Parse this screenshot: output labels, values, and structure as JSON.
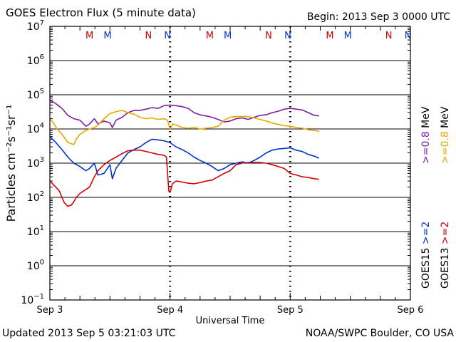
{
  "header": {
    "title": "GOES Electron Flux (5 minute data)",
    "begin": "Begin: 2013 Sep 3 0000 UTC"
  },
  "footer": {
    "updated": "Updated 2013 Sep  5 03:21:03 UTC",
    "credit": "NOAA/SWPC Boulder, CO USA"
  },
  "chart_data": {
    "type": "line",
    "title": "GOES Electron Flux (5 minute data)",
    "xlabel": "Universal Time",
    "ylabel": "Particles cm⁻²s⁻¹sr⁻¹",
    "yscale": "log",
    "ylim_exponents": [
      -1,
      7
    ],
    "xlim_days": [
      0,
      3
    ],
    "x_ticks": [
      {
        "day": 0,
        "label": "Sep 3"
      },
      {
        "day": 1,
        "label": "Sep 4"
      },
      {
        "day": 2,
        "label": "Sep 5"
      },
      {
        "day": 3,
        "label": "Sep 6"
      }
    ],
    "y_ticks": [
      {
        "exp": 7,
        "base": "10",
        "sup": "7"
      },
      {
        "exp": 6,
        "base": "10",
        "sup": "6"
      },
      {
        "exp": 5,
        "base": "10",
        "sup": "5"
      },
      {
        "exp": 4,
        "base": "10",
        "sup": "4"
      },
      {
        "exp": 3,
        "base": "10",
        "sup": "3"
      },
      {
        "exp": 2,
        "base": "10",
        "sup": "2"
      },
      {
        "exp": 1,
        "base": "10",
        "sup": "1"
      },
      {
        "exp": 0,
        "base": "10",
        "sup": "0"
      },
      {
        "exp": -1,
        "base": "10",
        "sup": "−1"
      }
    ],
    "threshold": {
      "value": 1000,
      "style": "dashed"
    },
    "midnight_marks_days": [
      1,
      2
    ],
    "midnight_markers": [
      {
        "day": 0.33,
        "text": "M",
        "color": "#cc0000"
      },
      {
        "day": 0.48,
        "text": "M",
        "color": "#0033cc"
      },
      {
        "day": 0.82,
        "text": "N",
        "color": "#cc0000"
      },
      {
        "day": 0.98,
        "text": "N",
        "color": "#0033cc"
      },
      {
        "day": 1.33,
        "text": "M",
        "color": "#cc0000"
      },
      {
        "day": 1.48,
        "text": "M",
        "color": "#0033cc"
      },
      {
        "day": 1.82,
        "text": "N",
        "color": "#cc0000"
      },
      {
        "day": 1.98,
        "text": "N",
        "color": "#0033cc"
      },
      {
        "day": 2.33,
        "text": "M",
        "color": "#cc0000"
      },
      {
        "day": 2.48,
        "text": "M",
        "color": "#0033cc"
      },
      {
        "day": 2.82,
        "text": "N",
        "color": "#cc0000"
      },
      {
        "day": 2.98,
        "text": "N",
        "color": "#0033cc"
      }
    ],
    "legend": [
      {
        "sat": "GOES15",
        "label": ">=2",
        "unit": "",
        "color": "#0033cc"
      },
      {
        "sat": "",
        "label": ">=0.8",
        "unit": "MeV",
        "color": "#7b1fa2"
      },
      {
        "sat": "GOES13",
        "label": ">=2",
        "unit": "",
        "color": "#d50000"
      },
      {
        "sat": "",
        "label": ">=0.8",
        "unit": "MeV",
        "color": "#e8a800"
      }
    ],
    "series": [
      {
        "name": "GOES15 >=0.8 MeV",
        "color": "#7b1fa2",
        "points": [
          [
            0,
            70000
          ],
          [
            0.05,
            55000
          ],
          [
            0.1,
            40000
          ],
          [
            0.15,
            25000
          ],
          [
            0.2,
            20000
          ],
          [
            0.25,
            18000
          ],
          [
            0.3,
            12000
          ],
          [
            0.33,
            14000
          ],
          [
            0.37,
            20000
          ],
          [
            0.4,
            14000
          ],
          [
            0.45,
            17000
          ],
          [
            0.5,
            15000
          ],
          [
            0.52,
            11000
          ],
          [
            0.55,
            18000
          ],
          [
            0.6,
            22000
          ],
          [
            0.65,
            30000
          ],
          [
            0.7,
            35000
          ],
          [
            0.75,
            35000
          ],
          [
            0.8,
            38000
          ],
          [
            0.85,
            42000
          ],
          [
            0.9,
            40000
          ],
          [
            0.95,
            48000
          ],
          [
            1.0,
            50000
          ],
          [
            1.05,
            48000
          ],
          [
            1.1,
            45000
          ],
          [
            1.15,
            40000
          ],
          [
            1.2,
            30000
          ],
          [
            1.25,
            26000
          ],
          [
            1.3,
            24000
          ],
          [
            1.35,
            22000
          ],
          [
            1.4,
            19000
          ],
          [
            1.45,
            16000
          ],
          [
            1.5,
            17000
          ],
          [
            1.55,
            20000
          ],
          [
            1.6,
            21000
          ],
          [
            1.65,
            19000
          ],
          [
            1.7,
            22000
          ],
          [
            1.75,
            25000
          ],
          [
            1.8,
            26000
          ],
          [
            1.85,
            30000
          ],
          [
            1.9,
            33000
          ],
          [
            1.95,
            38000
          ],
          [
            2.0,
            40000
          ],
          [
            2.05,
            38000
          ],
          [
            2.1,
            36000
          ],
          [
            2.15,
            30000
          ],
          [
            2.2,
            25000
          ],
          [
            2.24,
            24000
          ]
        ]
      },
      {
        "name": "GOES13 >=0.8 MeV",
        "color": "#e8a800",
        "points": [
          [
            0,
            20000
          ],
          [
            0.03,
            15000
          ],
          [
            0.06,
            10000
          ],
          [
            0.1,
            7000
          ],
          [
            0.15,
            4000
          ],
          [
            0.2,
            3500
          ],
          [
            0.22,
            5000
          ],
          [
            0.25,
            7000
          ],
          [
            0.3,
            9000
          ],
          [
            0.33,
            10000
          ],
          [
            0.37,
            11000
          ],
          [
            0.4,
            13000
          ],
          [
            0.45,
            20000
          ],
          [
            0.5,
            28000
          ],
          [
            0.55,
            32000
          ],
          [
            0.6,
            35000
          ],
          [
            0.65,
            30000
          ],
          [
            0.7,
            27000
          ],
          [
            0.75,
            22000
          ],
          [
            0.8,
            20000
          ],
          [
            0.85,
            21000
          ],
          [
            0.9,
            19000
          ],
          [
            0.95,
            20000
          ],
          [
            0.98,
            18000
          ],
          [
            1.0,
            9500
          ],
          [
            1.02,
            14000
          ],
          [
            1.05,
            13000
          ],
          [
            1.1,
            11000
          ],
          [
            1.15,
            10500
          ],
          [
            1.2,
            11000
          ],
          [
            1.25,
            10000
          ],
          [
            1.3,
            10500
          ],
          [
            1.35,
            11000
          ],
          [
            1.4,
            12000
          ],
          [
            1.45,
            18000
          ],
          [
            1.5,
            22000
          ],
          [
            1.55,
            23000
          ],
          [
            1.6,
            23000
          ],
          [
            1.65,
            23000
          ],
          [
            1.7,
            21000
          ],
          [
            1.75,
            19000
          ],
          [
            1.8,
            17000
          ],
          [
            1.85,
            15000
          ],
          [
            1.9,
            13500
          ],
          [
            1.95,
            12500
          ],
          [
            2.0,
            12000
          ],
          [
            2.05,
            11000
          ],
          [
            2.1,
            10500
          ],
          [
            2.15,
            9500
          ],
          [
            2.2,
            9000
          ],
          [
            2.24,
            8500
          ]
        ]
      },
      {
        "name": "GOES15 >=2 MeV",
        "color": "#0033cc",
        "points": [
          [
            0,
            6000
          ],
          [
            0.05,
            4000
          ],
          [
            0.1,
            2500
          ],
          [
            0.15,
            1500
          ],
          [
            0.2,
            1000
          ],
          [
            0.25,
            800
          ],
          [
            0.3,
            600
          ],
          [
            0.33,
            700
          ],
          [
            0.37,
            1000
          ],
          [
            0.4,
            450
          ],
          [
            0.45,
            500
          ],
          [
            0.5,
            900
          ],
          [
            0.52,
            350
          ],
          [
            0.55,
            700
          ],
          [
            0.6,
            1200
          ],
          [
            0.65,
            2000
          ],
          [
            0.7,
            2500
          ],
          [
            0.75,
            3000
          ],
          [
            0.8,
            4000
          ],
          [
            0.85,
            5000
          ],
          [
            0.9,
            4800
          ],
          [
            0.95,
            4500
          ],
          [
            1.0,
            4000
          ],
          [
            1.05,
            3000
          ],
          [
            1.1,
            2500
          ],
          [
            1.15,
            2000
          ],
          [
            1.2,
            1500
          ],
          [
            1.25,
            1200
          ],
          [
            1.3,
            1000
          ],
          [
            1.35,
            800
          ],
          [
            1.4,
            600
          ],
          [
            1.45,
            700
          ],
          [
            1.5,
            900
          ],
          [
            1.55,
            1000
          ],
          [
            1.6,
            1100
          ],
          [
            1.65,
            1000
          ],
          [
            1.7,
            1200
          ],
          [
            1.75,
            1500
          ],
          [
            1.8,
            2000
          ],
          [
            1.85,
            2400
          ],
          [
            1.9,
            2600
          ],
          [
            1.95,
            2700
          ],
          [
            2.0,
            2800
          ],
          [
            2.05,
            2400
          ],
          [
            2.1,
            2200
          ],
          [
            2.15,
            1800
          ],
          [
            2.2,
            1600
          ],
          [
            2.24,
            1400
          ]
        ]
      },
      {
        "name": "GOES13 >=2 MeV",
        "color": "#d50000",
        "points": [
          [
            0,
            300
          ],
          [
            0.05,
            200
          ],
          [
            0.08,
            150
          ],
          [
            0.1,
            100
          ],
          [
            0.12,
            70
          ],
          [
            0.15,
            55
          ],
          [
            0.18,
            60
          ],
          [
            0.2,
            75
          ],
          [
            0.22,
            100
          ],
          [
            0.25,
            130
          ],
          [
            0.3,
            170
          ],
          [
            0.33,
            200
          ],
          [
            0.37,
            400
          ],
          [
            0.4,
            600
          ],
          [
            0.45,
            900
          ],
          [
            0.5,
            1200
          ],
          [
            0.55,
            1500
          ],
          [
            0.6,
            1900
          ],
          [
            0.65,
            2300
          ],
          [
            0.7,
            2400
          ],
          [
            0.75,
            2400
          ],
          [
            0.8,
            2200
          ],
          [
            0.85,
            2000
          ],
          [
            0.9,
            1800
          ],
          [
            0.95,
            1700
          ],
          [
            0.97,
            1500
          ],
          [
            0.99,
            150
          ],
          [
            1.0,
            140
          ],
          [
            1.02,
            250
          ],
          [
            1.05,
            300
          ],
          [
            1.1,
            280
          ],
          [
            1.15,
            260
          ],
          [
            1.2,
            250
          ],
          [
            1.25,
            270
          ],
          [
            1.3,
            300
          ],
          [
            1.35,
            320
          ],
          [
            1.4,
            400
          ],
          [
            1.45,
            500
          ],
          [
            1.5,
            600
          ],
          [
            1.55,
            900
          ],
          [
            1.6,
            1000
          ],
          [
            1.65,
            1050
          ],
          [
            1.7,
            1050
          ],
          [
            1.75,
            1050
          ],
          [
            1.8,
            1000
          ],
          [
            1.85,
            900
          ],
          [
            1.9,
            800
          ],
          [
            1.95,
            700
          ],
          [
            2.0,
            500
          ],
          [
            2.05,
            450
          ],
          [
            2.1,
            400
          ],
          [
            2.15,
            380
          ],
          [
            2.2,
            350
          ],
          [
            2.24,
            340
          ]
        ]
      }
    ]
  }
}
